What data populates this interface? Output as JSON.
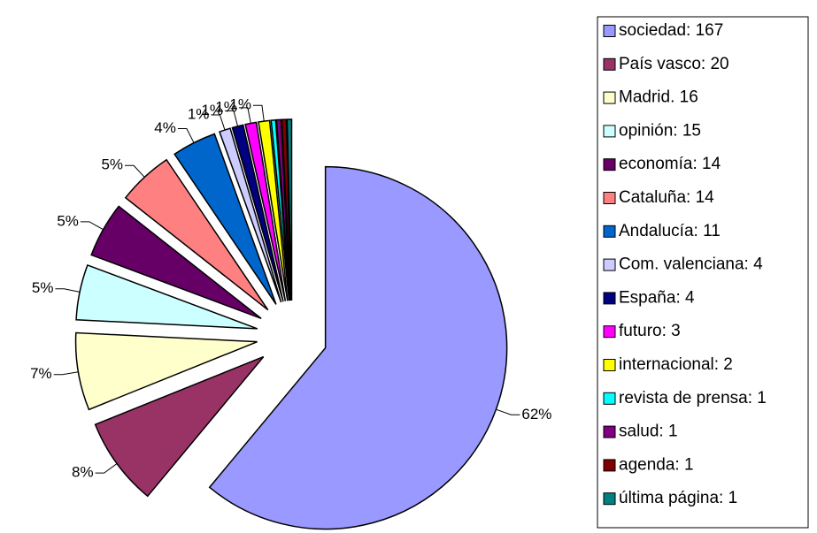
{
  "chart_data": {
    "type": "pie",
    "categories": [
      "sociedad: 167",
      "País vasco: 20",
      "Madrid. 16",
      "opinión: 15",
      "economía: 14",
      "Cataluña: 14",
      "Andalucía: 11",
      "Com. valenciana: 4",
      "España: 4",
      "futuro: 3",
      "internacional: 2",
      "revista de prensa: 1",
      "salud: 1",
      "agenda: 1",
      "última página: 1"
    ],
    "values": [
      62,
      8,
      7,
      5,
      5,
      5,
      4,
      1,
      1,
      1,
      1,
      0.4,
      0.4,
      0.4,
      0.4
    ],
    "value_labels": [
      "62%",
      "8%",
      "7%",
      "5%",
      "5%",
      "5%",
      "4%",
      "1%",
      "1%",
      "1%",
      "1%",
      null,
      null,
      null,
      null
    ],
    "colors": [
      "#9999ff",
      "#993366",
      "#ffffcc",
      "#ccffff",
      "#660066",
      "#ff8080",
      "#0066cc",
      "#ccccff",
      "#000080",
      "#ff00ff",
      "#ffff00",
      "#00ffff",
      "#800080",
      "#800000",
      "#008080"
    ],
    "legend": "right"
  }
}
